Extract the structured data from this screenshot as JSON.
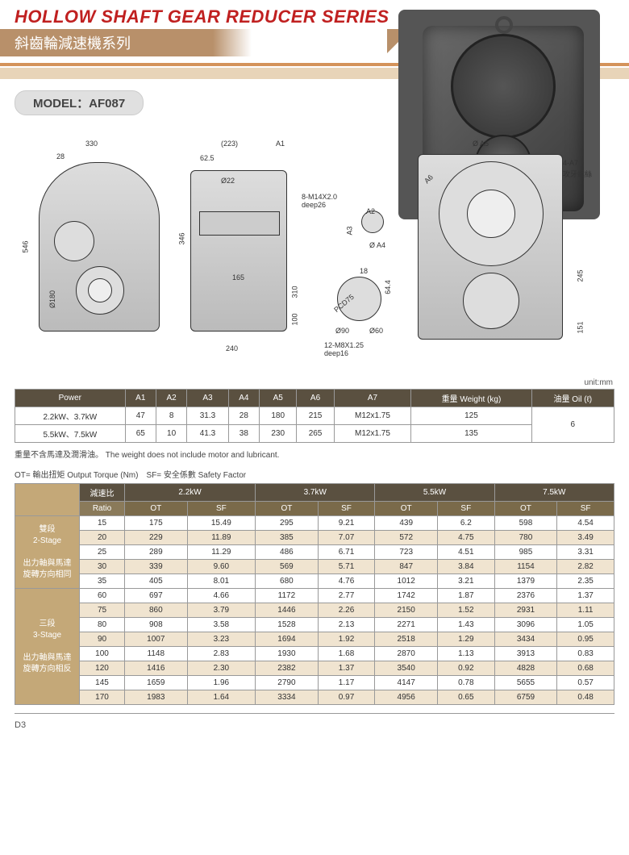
{
  "header": {
    "title_en": "HOLLOW SHAFT GEAR REDUCER SERIES",
    "title_cn": "斜齒輪減速機系列",
    "model_label": "MODEL：AF087"
  },
  "drawing_labels": {
    "d330": "330",
    "d28": "28",
    "d223": "(223)",
    "dA1": "A1",
    "d62_5": "62.5",
    "phi22": "Ø22",
    "d546": "546",
    "phi180": "Ø180",
    "d346": "346",
    "d165": "165",
    "d310": "310",
    "d100": "100",
    "d240": "240",
    "thread1": "8-M14X2.0",
    "deep26": "deep26",
    "dA2": "A2",
    "dA3": "A3",
    "phiA4": "Ø A4",
    "d18": "18",
    "d64_4": "64.4",
    "pcd75": "PCD75",
    "phi90": "Ø90",
    "phi60": "Ø60",
    "thread2": "12-M8X1.25",
    "deep16": "deep16",
    "phiA5": "Ø A5",
    "dA6": "A6",
    "d4A7": "4-A7",
    "tapthread": "攻牙螺絲",
    "d245": "245",
    "d151": "151"
  },
  "unit_text": "unit:mm",
  "spec_table": {
    "headers": [
      "Power",
      "A1",
      "A2",
      "A3",
      "A4",
      "A5",
      "A6",
      "A7",
      "重量 Weight (kg)",
      "油量 Oil (ℓ)"
    ],
    "rows": [
      [
        "2.2kW、3.7kW",
        "47",
        "8",
        "31.3",
        "28",
        "180",
        "215",
        "M12x1.75",
        "125"
      ],
      [
        "5.5kW、7.5kW",
        "65",
        "10",
        "41.3",
        "38",
        "230",
        "265",
        "M12x1.75",
        "135"
      ]
    ],
    "oil": "6"
  },
  "note_text": "重量不含馬達及潤滑油。 The weight does not include motor and lubricant.",
  "legend_text": "OT= 輸出扭矩 Output Torque (Nm)　SF= 安全係數 Safety Factor",
  "torque_table": {
    "top_headers": [
      "減速比",
      "2.2kW",
      "3.7kW",
      "5.5kW",
      "7.5kW"
    ],
    "sub_headers": [
      "Ratio",
      "OT",
      "SF",
      "OT",
      "SF",
      "OT",
      "SF",
      "OT",
      "SF"
    ],
    "stage2_label": "雙段\n2-Stage",
    "stage2_sub": "出力軸與馬達\n旋轉方向相同",
    "stage3_label": "三段\n3-Stage",
    "stage3_sub": "出力軸與馬達\n旋轉方向相反",
    "stage2_rows": [
      [
        "15",
        "175",
        "15.49",
        "295",
        "9.21",
        "439",
        "6.2",
        "598",
        "4.54"
      ],
      [
        "20",
        "229",
        "11.89",
        "385",
        "7.07",
        "572",
        "4.75",
        "780",
        "3.49"
      ],
      [
        "25",
        "289",
        "11.29",
        "486",
        "6.71",
        "723",
        "4.51",
        "985",
        "3.31"
      ],
      [
        "30",
        "339",
        "9.60",
        "569",
        "5.71",
        "847",
        "3.84",
        "1154",
        "2.82"
      ],
      [
        "35",
        "405",
        "8.01",
        "680",
        "4.76",
        "1012",
        "3.21",
        "1379",
        "2.35"
      ]
    ],
    "stage3_rows": [
      [
        "60",
        "697",
        "4.66",
        "1172",
        "2.77",
        "1742",
        "1.87",
        "2376",
        "1.37"
      ],
      [
        "75",
        "860",
        "3.79",
        "1446",
        "2.26",
        "2150",
        "1.52",
        "2931",
        "1.11"
      ],
      [
        "80",
        "908",
        "3.58",
        "1528",
        "2.13",
        "2271",
        "1.43",
        "3096",
        "1.05"
      ],
      [
        "90",
        "1007",
        "3.23",
        "1694",
        "1.92",
        "2518",
        "1.29",
        "3434",
        "0.95"
      ],
      [
        "100",
        "1148",
        "2.83",
        "1930",
        "1.68",
        "2870",
        "1.13",
        "3913",
        "0.83"
      ],
      [
        "120",
        "1416",
        "2.30",
        "2382",
        "1.37",
        "3540",
        "0.92",
        "4828",
        "0.68"
      ],
      [
        "145",
        "1659",
        "1.96",
        "2790",
        "1.17",
        "4147",
        "0.78",
        "5655",
        "0.57"
      ],
      [
        "170",
        "1983",
        "1.64",
        "3334",
        "0.97",
        "4956",
        "0.65",
        "6759",
        "0.48"
      ]
    ]
  },
  "footer": {
    "page": "D3"
  },
  "colors": {
    "header_red": "#c02020",
    "tan_bar": "#b8906a",
    "orange_line": "#d4935a",
    "table_dark": "#5a5040",
    "table_mid": "#7a6a4a",
    "stage_tan": "#c4a878",
    "row_tan": "#f0e4d0"
  }
}
